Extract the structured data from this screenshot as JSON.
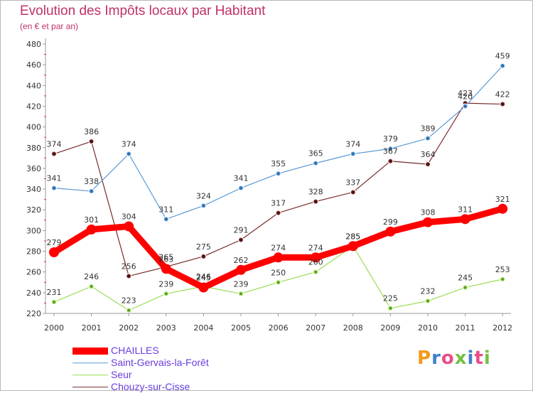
{
  "header": {
    "title": "Evolution des Impôts locaux par Habitant",
    "subtitle": "(en € et par an)"
  },
  "logo": {
    "text": "Proxiti"
  },
  "chart_data": {
    "type": "line",
    "title": "Evolution des Impôts locaux par Habitant",
    "subtitle": "(en € et par an)",
    "xlabel": "",
    "ylabel": "",
    "categories": [
      "2000",
      "2001",
      "2002",
      "2003",
      "2004",
      "2005",
      "2006",
      "2007",
      "2008",
      "2009",
      "2010",
      "2011",
      "2012"
    ],
    "ylim": [
      220,
      480
    ],
    "yticks": [
      220,
      240,
      260,
      280,
      300,
      320,
      340,
      360,
      380,
      400,
      420,
      440,
      460,
      480
    ],
    "grid": false,
    "legend_position": "bottom-left",
    "series": [
      {
        "name": "CHAILLES",
        "color": "#ff0000",
        "values": [
          279,
          301,
          304,
          263,
          245,
          262,
          274,
          274,
          285,
          299,
          308,
          311,
          321
        ]
      },
      {
        "name": "Saint-Gervais-la-Forêt",
        "color": "#5a9ad6",
        "values": [
          341,
          338,
          374,
          311,
          324,
          341,
          355,
          365,
          374,
          379,
          389,
          420,
          459
        ]
      },
      {
        "name": "Seur",
        "color": "#99dd55",
        "values": [
          231,
          246,
          223,
          239,
          246,
          239,
          250,
          260,
          285,
          225,
          232,
          245,
          253
        ]
      },
      {
        "name": "Chouzy-sur-Cisse",
        "color": "#7a2a2a",
        "values": [
          374,
          386,
          256,
          265,
          275,
          291,
          317,
          328,
          337,
          367,
          364,
          423,
          422
        ]
      }
    ]
  }
}
